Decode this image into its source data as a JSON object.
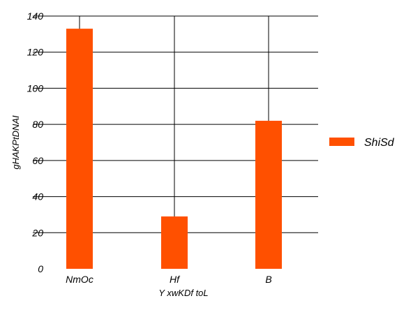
{
  "chart_data": {
    "type": "bar",
    "title": "",
    "xlabel": "Y xwKDf toL",
    "ylabel": "gHAKPtDNAI",
    "categories": [
      "NmOc",
      "Hf",
      "B"
    ],
    "series": [
      {
        "name": "ShiSd",
        "values": [
          133,
          29,
          82
        ],
        "color": "#ff5000"
      }
    ],
    "ylim": [
      0,
      140
    ],
    "yticks": [
      0,
      20,
      40,
      60,
      80,
      100,
      120,
      140
    ],
    "grid": {
      "horizontal": true,
      "vertical": true
    },
    "legend": {
      "position": "right"
    }
  }
}
